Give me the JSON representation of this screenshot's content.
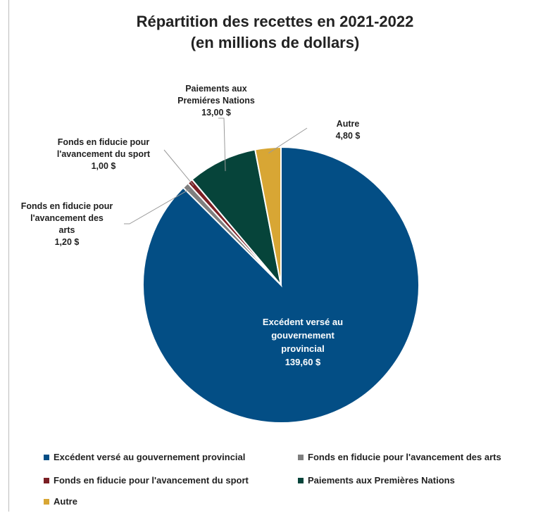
{
  "chart_data": {
    "type": "pie",
    "title": "Répartition des recettes en 2021-2022",
    "subtitle": "(en millions de dollars)",
    "slices": [
      {
        "name": "Excédent versé au gouvernement provincial",
        "value": 139.6,
        "label_lines": [
          "Excédent versé au",
          "gouvernement",
          "provincial",
          "139,60 $"
        ],
        "color": "#034e85"
      },
      {
        "name": "Fonds en fiducie pour l'avancement des arts",
        "value": 1.2,
        "label_lines": [
          "Fonds en fiducie pour",
          "l'avancement des",
          "arts",
          "1,20 $"
        ],
        "color": "#7f7f7f"
      },
      {
        "name": "Fonds en fiducie pour l'avancement du sport",
        "value": 1.0,
        "label_lines": [
          "Fonds en fiducie pour",
          "l'avancement du sport",
          "1,00 $"
        ],
        "color": "#7b1f24"
      },
      {
        "name": "Paiements aux Premières Nations",
        "value": 13.0,
        "label_lines": [
          "Paiements aux",
          "Premiéres Nations",
          "13,00 $"
        ],
        "color": "#06443a"
      },
      {
        "name": "Autre",
        "value": 4.8,
        "label_lines": [
          "Autre",
          "4,80 $"
        ],
        "color": "#d8a634"
      }
    ],
    "legend_position": "bottom"
  }
}
